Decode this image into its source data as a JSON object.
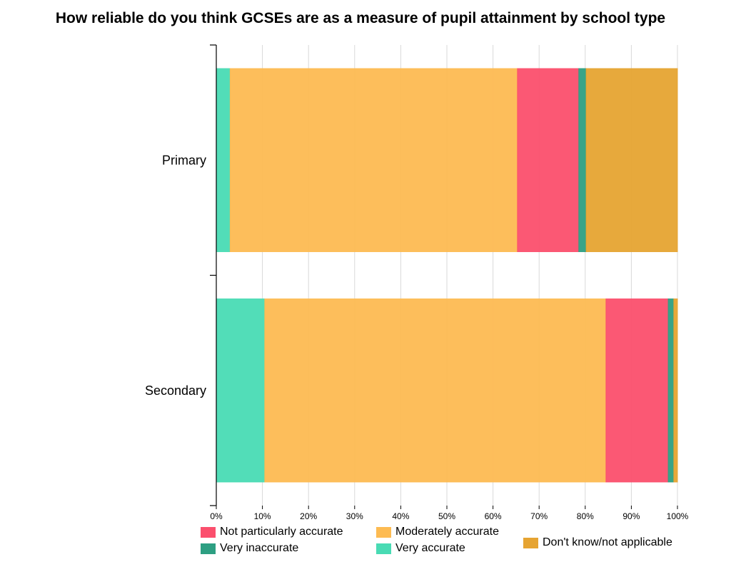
{
  "chart_data": {
    "type": "bar",
    "orientation": "horizontal",
    "stacked": true,
    "title": "How reliable do you think GCSEs are as a measure of pupil attainment by school type",
    "categories": [
      "Primary",
      "Secondary"
    ],
    "series": [
      {
        "name": "Very accurate",
        "color": "#49dbb4",
        "values": [
          3,
          10.5
        ]
      },
      {
        "name": "Moderately accurate",
        "color": "#fdbb52",
        "values": [
          62.3,
          74
        ]
      },
      {
        "name": "Not particularly accurate",
        "color": "#fb4f6d",
        "values": [
          13.3,
          13.5
        ]
      },
      {
        "name": "Very inaccurate",
        "color": "#2d9f82",
        "values": [
          1.6,
          1.2
        ]
      },
      {
        "name": "Don't know/not applicable",
        "color": "#e6a432",
        "values": [
          19.8,
          0.8
        ]
      }
    ],
    "xlim": [
      0,
      100
    ],
    "xticks": [
      "0%",
      "10%",
      "20%",
      "30%",
      "40%",
      "50%",
      "60%",
      "70%",
      "80%",
      "90%",
      "100%"
    ],
    "xlabel": "",
    "ylabel": "",
    "grid": true,
    "legend": {
      "placement": "bottom",
      "order": [
        "Not particularly accurate",
        "Moderately accurate",
        "Don't know/not applicable",
        "Very inaccurate",
        "Very accurate"
      ]
    }
  }
}
